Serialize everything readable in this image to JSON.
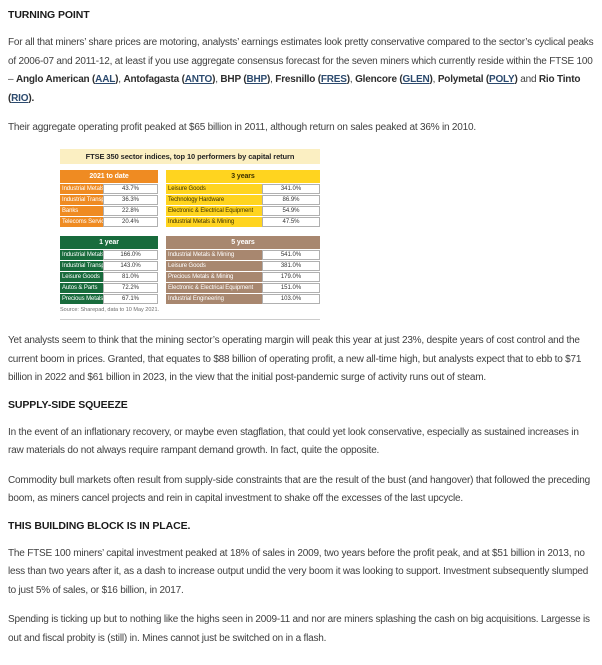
{
  "article": {
    "headings": [
      "TURNING POINT",
      "SUPPLY-SIDE SQUEEZE",
      "THIS BUILDING BLOCK IS IN PLACE."
    ],
    "intro_segments": [
      {
        "style": "normal",
        "text": "For all that miners’ share prices are motoring, analysts’ earnings estimates look pretty conservative compared to the sector’s cyclical peaks of 2006-07 and 2011-12, at least if you use aggregate consensus forecast for the seven miners which currently reside within the FTSE 100 – "
      },
      {
        "style": "bold",
        "text": "Anglo American ("
      },
      {
        "style": "link",
        "text": "AAL"
      },
      {
        "style": "bold",
        "text": ")"
      },
      {
        "style": "normal",
        "text": ", "
      },
      {
        "style": "bold",
        "text": "Antofagasta ("
      },
      {
        "style": "link",
        "text": "ANTO"
      },
      {
        "style": "bold",
        "text": ")"
      },
      {
        "style": "normal",
        "text": ", "
      },
      {
        "style": "bold",
        "text": "BHP ("
      },
      {
        "style": "link",
        "text": "BHP"
      },
      {
        "style": "bold",
        "text": ")"
      },
      {
        "style": "normal",
        "text": ", "
      },
      {
        "style": "bold",
        "text": "Fresnillo ("
      },
      {
        "style": "link",
        "text": "FRES"
      },
      {
        "style": "bold",
        "text": ")"
      },
      {
        "style": "normal",
        "text": ", "
      },
      {
        "style": "bold",
        "text": "Glencore ("
      },
      {
        "style": "link",
        "text": "GLEN"
      },
      {
        "style": "bold",
        "text": ")"
      },
      {
        "style": "normal",
        "text": ", "
      },
      {
        "style": "bold",
        "text": "Polymetal ("
      },
      {
        "style": "link",
        "text": "POLY"
      },
      {
        "style": "bold",
        "text": ")"
      },
      {
        "style": "normal",
        "text": " and "
      },
      {
        "style": "bold",
        "text": "Rio Tinto ("
      },
      {
        "style": "link",
        "text": "RIO"
      },
      {
        "style": "bold",
        "text": ")."
      }
    ],
    "paragraphs": {
      "p2": "Their aggregate operating profit peaked at $65 billion in 2011, although return on sales peaked at 36% in 2010.",
      "p3": "Yet analysts seem to think that the mining sector’s operating margin will peak this year at just 23%, despite years of cost control and the current boom in prices. Granted, that equates to $88 billion of operating profit, a new all-time high, but analysts expect that to ebb to $71 billion in 2022 and $61 billion in 2023, in the view that the initial post-pandemic surge of activity runs out of steam.",
      "p4": "In the event of an inflationary recovery, or maybe even stagflation, that could yet look conservative, especially as sustained increases in raw materials do not always require rampant demand growth. In fact, quite the opposite.",
      "p5": "Commodity bull markets often result from supply-side constraints that are the result of the bust (and hangover) that followed the preceding boom, as miners cancel projects and rein in capital investment to shake off the excesses of the last upcycle.",
      "p6": "The FTSE 100 miners’ capital investment peaked at 18% of sales in 2009, two years before the profit peak, and at $51 billion in 2013, no less than two years after it, as a dash to increase output undid the very boom it was looking to support. Investment subsequently slumped to just 5% of sales, or $16 billion, in 2017.",
      "p7": "Spending is ticking up but to nothing like the highs seen in 2009-11 and nor are miners splashing the cash on big acquisitions. Largesse is out and fiscal probity is (still) in. Mines cannot just be switched on in a flash."
    }
  },
  "chart_data": {
    "type": "table",
    "title": "FTSE 350 sector indices, top 10 performers by capital return",
    "source": "Source: Sharepad, data to 10 May 2021.",
    "groups": [
      {
        "label": "2021 to date",
        "theme": "orange",
        "rows": [
          [
            "Industrial Metals & Mining",
            "43.7%"
          ],
          [
            "Industrial Transportation",
            "36.3%"
          ],
          [
            "Banks",
            "22.8%"
          ],
          [
            "Telecoms Services",
            "20.4%"
          ]
        ]
      },
      {
        "label": "3 years",
        "theme": "yellow",
        "rows": [
          [
            "Leisure Goods",
            "341.0%"
          ],
          [
            "Technology Hardware",
            "86.9%"
          ],
          [
            "Electronic & Electrical Equipment",
            "54.9%"
          ],
          [
            "Industrial Metals & Mining",
            "47.5%"
          ]
        ]
      },
      {
        "label": "1 year",
        "theme": "green",
        "rows": [
          [
            "Industrial Metals & Mining",
            "166.0%"
          ],
          [
            "Industrial Transportation",
            "143.0%"
          ],
          [
            "Leisure Goods",
            "81.0%"
          ],
          [
            "Autos & Parts",
            "72.2%"
          ],
          [
            "Precious Metals & Mining",
            "67.1%"
          ]
        ]
      },
      {
        "label": "5 years",
        "theme": "brown",
        "rows": [
          [
            "Industrial Metals & Mining",
            "541.0%"
          ],
          [
            "Leisure Goods",
            "381.0%"
          ],
          [
            "Precious Metals & Mining",
            "179.0%"
          ],
          [
            "Electronic & Electrical Equipment",
            "151.0%"
          ],
          [
            "Industrial Engineering",
            "103.0%"
          ]
        ]
      }
    ]
  },
  "colors": {
    "quadrant_orange": "#ef8b22",
    "quadrant_yellow": "#ffd41f",
    "quadrant_green": "#186b3c",
    "quadrant_brown": "#a8876f",
    "figure_title_bg": "#fbefc2",
    "link": "#2c4a6e",
    "body_text": "#404040"
  }
}
